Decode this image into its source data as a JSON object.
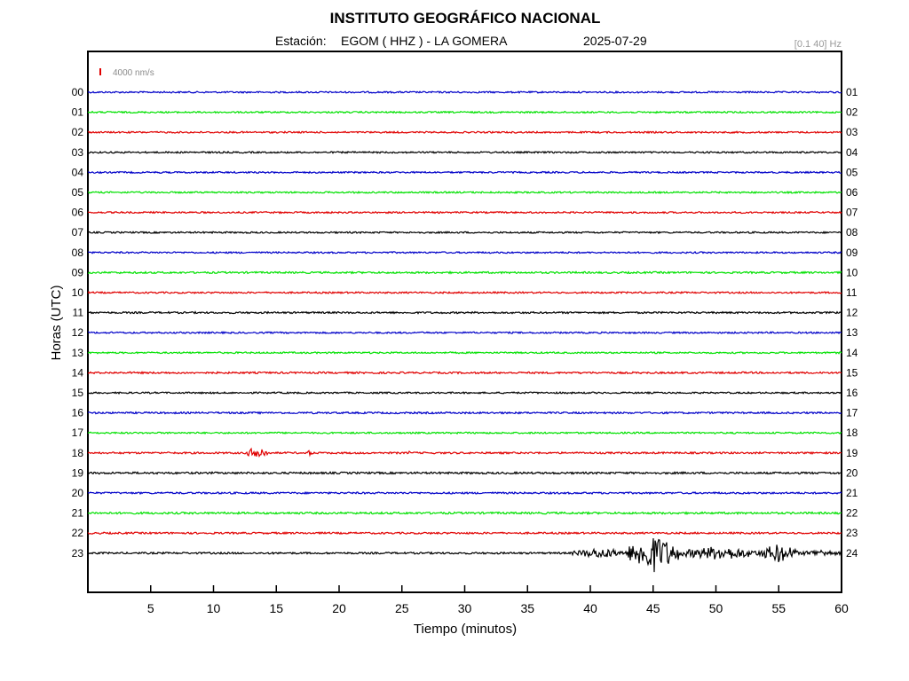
{
  "header": {
    "title": "INSTITUTO GEOGRÁFICO NACIONAL",
    "station_label": "Estación:",
    "station": "EGOM ( HHZ ) - LA GOMERA",
    "date": "2025-07-29",
    "band": "[0.1 40] Hz",
    "scale_label": "4000 nm/s"
  },
  "chart_data": {
    "type": "line",
    "title": "INSTITUTO GEOGRÁFICO NACIONAL",
    "xlabel": "Tiempo (minutos)",
    "ylabel": "Horas (UTC)",
    "xlim": [
      0,
      60
    ],
    "x_ticks": [
      5,
      10,
      15,
      20,
      25,
      30,
      35,
      40,
      45,
      50,
      55,
      60
    ],
    "left_labels": [
      "00",
      "01",
      "02",
      "03",
      "04",
      "05",
      "06",
      "07",
      "08",
      "09",
      "10",
      "11",
      "12",
      "13",
      "14",
      "15",
      "16",
      "17",
      "18",
      "19",
      "20",
      "21",
      "22",
      "23"
    ],
    "right_labels": [
      "01",
      "02",
      "03",
      "04",
      "05",
      "06",
      "07",
      "08",
      "09",
      "10",
      "11",
      "12",
      "13",
      "14",
      "15",
      "16",
      "17",
      "18",
      "19",
      "20",
      "21",
      "22",
      "23",
      "24"
    ],
    "series": [
      {
        "hour": "00",
        "color": "#0000c8",
        "noise": 0.9
      },
      {
        "hour": "01",
        "color": "#00e000",
        "noise": 0.9
      },
      {
        "hour": "02",
        "color": "#e00000",
        "noise": 0.9
      },
      {
        "hour": "03",
        "color": "#000000",
        "noise": 0.9
      },
      {
        "hour": "04",
        "color": "#0000c8",
        "noise": 0.9
      },
      {
        "hour": "05",
        "color": "#00e000",
        "noise": 0.9
      },
      {
        "hour": "06",
        "color": "#e00000",
        "noise": 0.9
      },
      {
        "hour": "07",
        "color": "#000000",
        "noise": 0.9
      },
      {
        "hour": "08",
        "color": "#0000c8",
        "noise": 0.9
      },
      {
        "hour": "09",
        "color": "#00e000",
        "noise": 1.0
      },
      {
        "hour": "10",
        "color": "#e00000",
        "noise": 0.9
      },
      {
        "hour": "11",
        "color": "#000000",
        "noise": 1.0
      },
      {
        "hour": "12",
        "color": "#0000c8",
        "noise": 0.9
      },
      {
        "hour": "13",
        "color": "#00e000",
        "noise": 0.9
      },
      {
        "hour": "14",
        "color": "#e00000",
        "noise": 1.0
      },
      {
        "hour": "15",
        "color": "#000000",
        "noise": 0.9
      },
      {
        "hour": "16",
        "color": "#0000c8",
        "noise": 1.0
      },
      {
        "hour": "17",
        "color": "#00e000",
        "noise": 0.9
      },
      {
        "hour": "18",
        "color": "#e00000",
        "noise": 1.0,
        "events": [
          {
            "start": 12.7,
            "end": 14.3,
            "amp": 8
          },
          {
            "start": 17.3,
            "end": 18.0,
            "amp": 3
          },
          {
            "start": 25.4,
            "end": 25.8,
            "amp": 2
          }
        ]
      },
      {
        "hour": "19",
        "color": "#000000",
        "noise": 1.1
      },
      {
        "hour": "20",
        "color": "#0000c8",
        "noise": 1.0
      },
      {
        "hour": "21",
        "color": "#00e000",
        "noise": 1.1
      },
      {
        "hour": "22",
        "color": "#e00000",
        "noise": 1.0
      },
      {
        "hour": "23",
        "color": "#000000",
        "noise": 1.0,
        "events": [
          {
            "start": 38.5,
            "end": 43.0,
            "amp": 6
          },
          {
            "start": 43.0,
            "end": 47.0,
            "amp": 22
          },
          {
            "start": 47.0,
            "end": 53.5,
            "amp": 8
          },
          {
            "start": 53.5,
            "end": 56.5,
            "amp": 11
          },
          {
            "start": 56.5,
            "end": 60.0,
            "amp": 4
          }
        ]
      }
    ]
  }
}
